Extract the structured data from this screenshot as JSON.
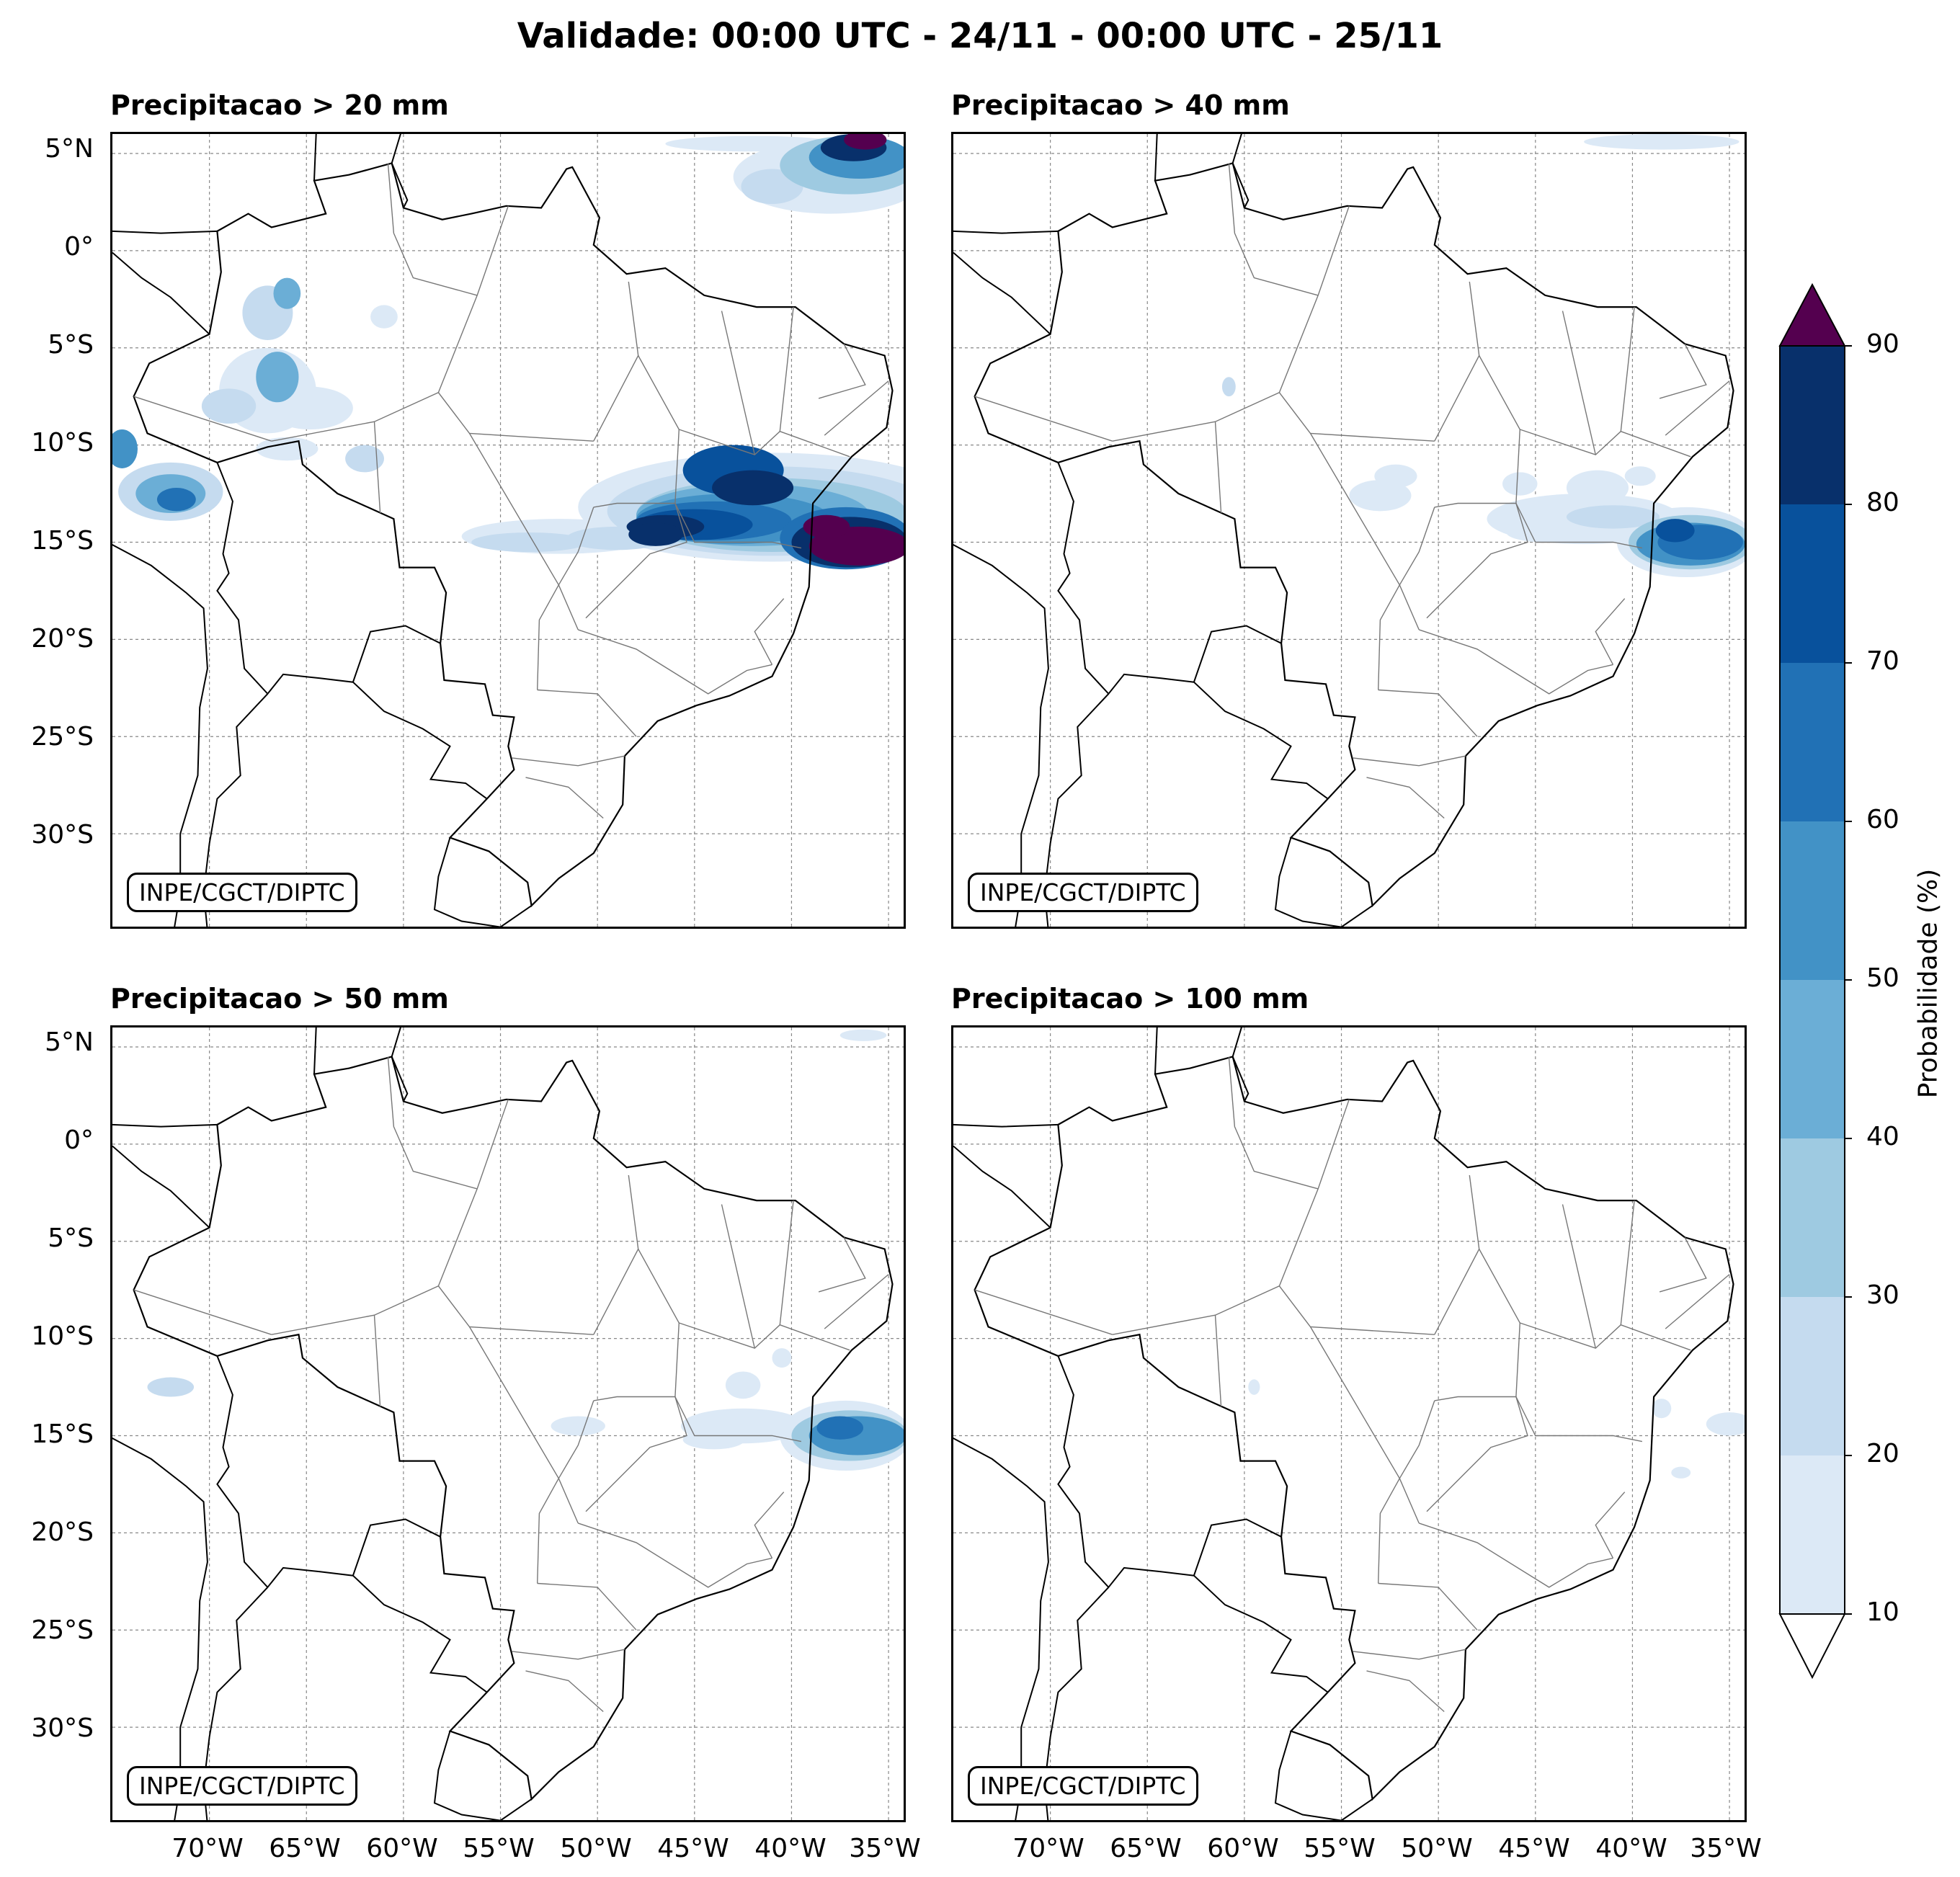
{
  "title": "Validade: 00:00 UTC - 24/11 - 00:00 UTC - 25/11",
  "panels": [
    {
      "title": "Precipitacao > 20 mm",
      "credit": "INPE/CGCT/DIPTC",
      "threshold_mm": 20
    },
    {
      "title": "Precipitacao > 40 mm",
      "credit": "INPE/CGCT/DIPTC",
      "threshold_mm": 40
    },
    {
      "title": "Precipitacao > 50 mm",
      "credit": "INPE/CGCT/DIPTC",
      "threshold_mm": 50
    },
    {
      "title": "Precipitacao > 100 mm",
      "credit": "INPE/CGCT/DIPTC",
      "threshold_mm": 100
    }
  ],
  "lat_labels": [
    "5°N",
    "0°",
    "5°S",
    "10°S",
    "15°S",
    "20°S",
    "25°S",
    "30°S"
  ],
  "lon_labels": [
    "70°W",
    "65°W",
    "60°W",
    "55°W",
    "50°W",
    "45°W",
    "40°W",
    "35°W"
  ],
  "colorbar": {
    "label": "Probabilidade (%)",
    "ticks": [
      "10",
      "20",
      "30",
      "40",
      "50",
      "60",
      "70",
      "80",
      "90"
    ],
    "colors": [
      "#dce9f6",
      "#c5dbef",
      "#9ecae1",
      "#6baed6",
      "#4292c6",
      "#2171b5",
      "#08519c",
      "#08306b"
    ],
    "over_color": "#54004f",
    "under_color": "#ffffff"
  }
}
